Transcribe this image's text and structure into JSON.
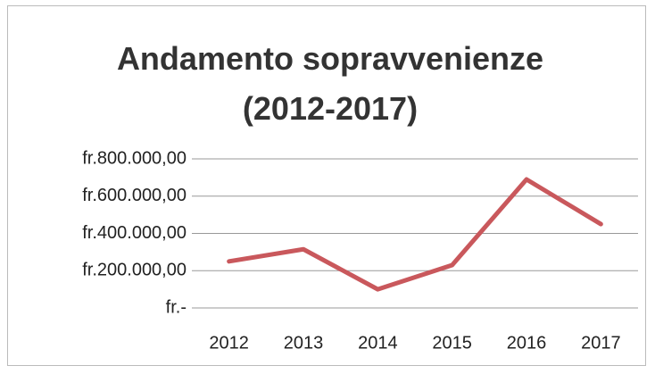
{
  "chart_data": {
    "type": "line",
    "title": "Andamento sopravvenienze (2012-2017)",
    "categories": [
      "2012",
      "2013",
      "2014",
      "2015",
      "2016",
      "2017"
    ],
    "series": [
      {
        "name": "Sopravvenienze",
        "color": "#c9585c",
        "values": [
          250000,
          315000,
          100000,
          230000,
          690000,
          450000
        ]
      }
    ],
    "ylim": [
      0,
      800000
    ],
    "yticks": [
      {
        "value": 0,
        "label": "fr.-"
      },
      {
        "value": 200000,
        "label": "fr.200.000,00"
      },
      {
        "value": 400000,
        "label": "fr.400.000,00"
      },
      {
        "value": 600000,
        "label": "fr.600.000,00"
      },
      {
        "value": 800000,
        "label": "fr.800.000,00"
      }
    ],
    "grid": true
  }
}
